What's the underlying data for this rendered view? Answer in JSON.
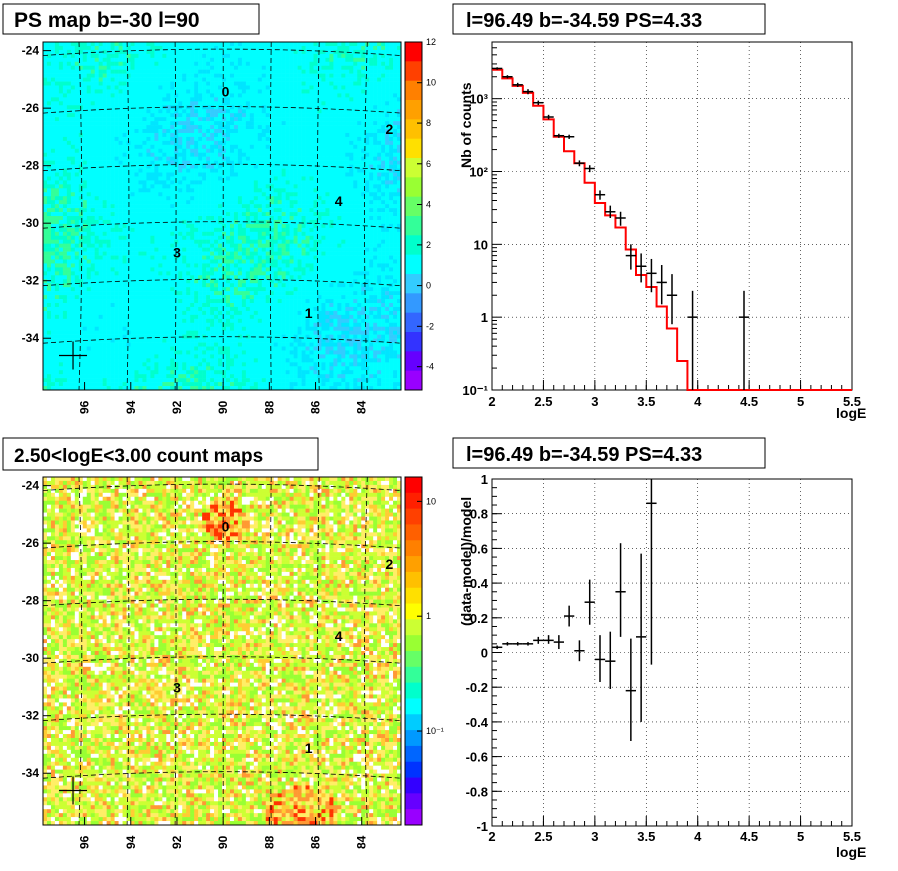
{
  "panels": {
    "ps_map": {
      "title": "PS map b=-30 l=90",
      "x_ticks": [
        "96",
        "94",
        "92",
        "90",
        "88",
        "86",
        "84"
      ],
      "y_ticks": [
        "-24",
        "-26",
        "-28",
        "-30",
        "-32",
        "-34"
      ],
      "cbar_ticks": [
        "12",
        "10",
        "8",
        "6",
        "4",
        "2",
        "0",
        "-2",
        "-4"
      ],
      "sources": [
        "0",
        "2",
        "4",
        "3",
        "1"
      ]
    },
    "count_map": {
      "title": "2.50<logE<3.00 count maps",
      "x_ticks": [
        "96",
        "94",
        "92",
        "90",
        "88",
        "86",
        "84"
      ],
      "y_ticks": [
        "-24",
        "-26",
        "-28",
        "-30",
        "-32",
        "-34"
      ],
      "cbar_ticks": [
        "10",
        "1",
        "10⁻¹"
      ],
      "sources": [
        "0",
        "2",
        "4",
        "3",
        "1"
      ]
    },
    "spectrum": {
      "title": "l=96.49 b=-34.59 PS=4.33",
      "ylabel": "Nb of counts",
      "xlabel": "logE",
      "x_ticks": [
        "2",
        "2.5",
        "3",
        "3.5",
        "4",
        "4.5",
        "5",
        "5.5"
      ],
      "y_ticks": [
        "10³",
        "10²",
        "10",
        "1",
        "10⁻¹"
      ]
    },
    "residual": {
      "title": "l=96.49 b=-34.59 PS=4.33",
      "ylabel": "(data-model)/model",
      "xlabel": "logE",
      "x_ticks": [
        "2",
        "2.5",
        "3",
        "3.5",
        "4",
        "4.5",
        "5",
        "5.5"
      ],
      "y_ticks": [
        "1",
        "0.8",
        "0.6",
        "0.4",
        "0.2",
        "0",
        "-0.2",
        "-0.4",
        "-0.6",
        "-0.8",
        "-1"
      ]
    }
  },
  "colors": {
    "model_line": "#ff0000",
    "data_points": "#000000",
    "map_base": "#00ffff",
    "count_base": "#ccff33"
  },
  "chart_data": [
    {
      "type": "heatmap",
      "title": "PS map b=-30 l=90",
      "xlim": [
        97.8,
        82.3
      ],
      "ylim": [
        -35.8,
        -23.7
      ],
      "zlim": [
        -5,
        12
      ],
      "sources": [
        {
          "label": "0",
          "l": 89.9,
          "b": -25.6
        },
        {
          "label": "2",
          "l": 82.8,
          "b": -26.9
        },
        {
          "label": "4",
          "l": 85.0,
          "b": -29.4
        },
        {
          "label": "3",
          "l": 92.0,
          "b": -31.2
        },
        {
          "label": "1",
          "l": 86.3,
          "b": -33.3
        }
      ],
      "marker": {
        "l": 96.5,
        "b": -34.6
      }
    },
    {
      "type": "heatmap",
      "title": "2.50<logE<3.00 count maps",
      "xlim": [
        97.8,
        82.3
      ],
      "ylim": [
        -35.8,
        -23.7
      ],
      "zscale": "log",
      "zlim": [
        0.05,
        20
      ],
      "sources": [
        {
          "label": "0",
          "l": 89.9,
          "b": -25.6
        },
        {
          "label": "2",
          "l": 82.8,
          "b": -26.9
        },
        {
          "label": "4",
          "l": 85.0,
          "b": -29.4
        },
        {
          "label": "3",
          "l": 92.0,
          "b": -31.2
        },
        {
          "label": "1",
          "l": 86.3,
          "b": -33.3
        }
      ],
      "marker": {
        "l": 96.5,
        "b": -34.6
      }
    },
    {
      "type": "line",
      "title": "l=96.49 b=-34.59 PS=4.33",
      "xlabel": "logE",
      "ylabel": "Nb of counts",
      "xlim": [
        2,
        5.5
      ],
      "ylim": [
        0.1,
        6000
      ],
      "yscale": "log",
      "grid": true,
      "model_steps": [
        [
          2.0,
          2500
        ],
        [
          2.1,
          1900
        ],
        [
          2.2,
          1500
        ],
        [
          2.3,
          1200
        ],
        [
          2.4,
          800
        ],
        [
          2.5,
          520
        ],
        [
          2.6,
          300
        ],
        [
          2.7,
          190
        ],
        [
          2.8,
          130
        ],
        [
          2.9,
          70
        ],
        [
          3.0,
          37
        ],
        [
          3.1,
          25
        ],
        [
          3.2,
          17
        ],
        [
          3.3,
          8.5
        ],
        [
          3.4,
          3.8
        ],
        [
          3.5,
          2.6
        ],
        [
          3.6,
          1.4
        ],
        [
          3.7,
          0.7
        ],
        [
          3.8,
          0.25
        ],
        [
          3.9,
          0.1
        ],
        [
          4.0,
          0.1
        ],
        [
          5.5,
          0.1
        ]
      ],
      "points": [
        {
          "x": 2.05,
          "y": 2600,
          "lo": 2500,
          "hi": 2700
        },
        {
          "x": 2.15,
          "y": 2000,
          "lo": 1900,
          "hi": 2100
        },
        {
          "x": 2.25,
          "y": 1550,
          "lo": 1450,
          "hi": 1650
        },
        {
          "x": 2.35,
          "y": 1250,
          "lo": 1150,
          "hi": 1350
        },
        {
          "x": 2.45,
          "y": 880,
          "lo": 820,
          "hi": 940
        },
        {
          "x": 2.55,
          "y": 560,
          "lo": 520,
          "hi": 600
        },
        {
          "x": 2.65,
          "y": 310,
          "lo": 290,
          "hi": 330
        },
        {
          "x": 2.75,
          "y": 300,
          "lo": 280,
          "hi": 320
        },
        {
          "x": 2.85,
          "y": 130,
          "lo": 118,
          "hi": 142
        },
        {
          "x": 2.95,
          "y": 110,
          "lo": 98,
          "hi": 122
        },
        {
          "x": 3.05,
          "y": 48,
          "lo": 41,
          "hi": 55
        },
        {
          "x": 3.15,
          "y": 28,
          "lo": 23,
          "hi": 34
        },
        {
          "x": 3.25,
          "y": 23,
          "lo": 18,
          "hi": 28
        },
        {
          "x": 3.35,
          "y": 7,
          "lo": 4.5,
          "hi": 10
        },
        {
          "x": 3.45,
          "y": 5,
          "lo": 3,
          "hi": 7.5
        },
        {
          "x": 3.55,
          "y": 4,
          "lo": 2.2,
          "hi": 6.3
        },
        {
          "x": 3.65,
          "y": 3,
          "lo": 1.5,
          "hi": 5.2
        },
        {
          "x": 3.75,
          "y": 2,
          "lo": 0.8,
          "hi": 3.9
        },
        {
          "x": 3.95,
          "y": 1,
          "lo": 0.1,
          "hi": 2.3
        },
        {
          "x": 4.45,
          "y": 1,
          "lo": 0.1,
          "hi": 2.3
        }
      ]
    },
    {
      "type": "scatter",
      "title": "l=96.49 b=-34.59 PS=4.33",
      "xlabel": "logE",
      "ylabel": "(data-model)/model",
      "xlim": [
        2,
        5.5
      ],
      "ylim": [
        -1,
        1
      ],
      "grid": true,
      "points": [
        {
          "x": 2.05,
          "y": 0.03,
          "lo": 0.02,
          "hi": 0.04
        },
        {
          "x": 2.15,
          "y": 0.05,
          "lo": 0.04,
          "hi": 0.06
        },
        {
          "x": 2.25,
          "y": 0.05,
          "lo": 0.04,
          "hi": 0.06
        },
        {
          "x": 2.35,
          "y": 0.05,
          "lo": 0.04,
          "hi": 0.06
        },
        {
          "x": 2.45,
          "y": 0.07,
          "lo": 0.05,
          "hi": 0.09
        },
        {
          "x": 2.55,
          "y": 0.07,
          "lo": 0.05,
          "hi": 0.1
        },
        {
          "x": 2.65,
          "y": 0.06,
          "lo": 0.02,
          "hi": 0.1
        },
        {
          "x": 2.75,
          "y": 0.21,
          "lo": 0.15,
          "hi": 0.27
        },
        {
          "x": 2.85,
          "y": 0.01,
          "lo": -0.05,
          "hi": 0.07
        },
        {
          "x": 2.95,
          "y": 0.29,
          "lo": 0.16,
          "hi": 0.42
        },
        {
          "x": 3.05,
          "y": -0.04,
          "lo": -0.17,
          "hi": 0.1
        },
        {
          "x": 3.15,
          "y": -0.05,
          "lo": -0.21,
          "hi": 0.12
        },
        {
          "x": 3.25,
          "y": 0.35,
          "lo": 0.09,
          "hi": 0.63
        },
        {
          "x": 3.35,
          "y": -0.22,
          "lo": -0.51,
          "hi": 0.08
        },
        {
          "x": 3.45,
          "y": 0.09,
          "lo": -0.4,
          "hi": 0.57
        },
        {
          "x": 3.55,
          "y": 0.86,
          "lo": -0.07,
          "hi": 1.0
        }
      ]
    }
  ]
}
